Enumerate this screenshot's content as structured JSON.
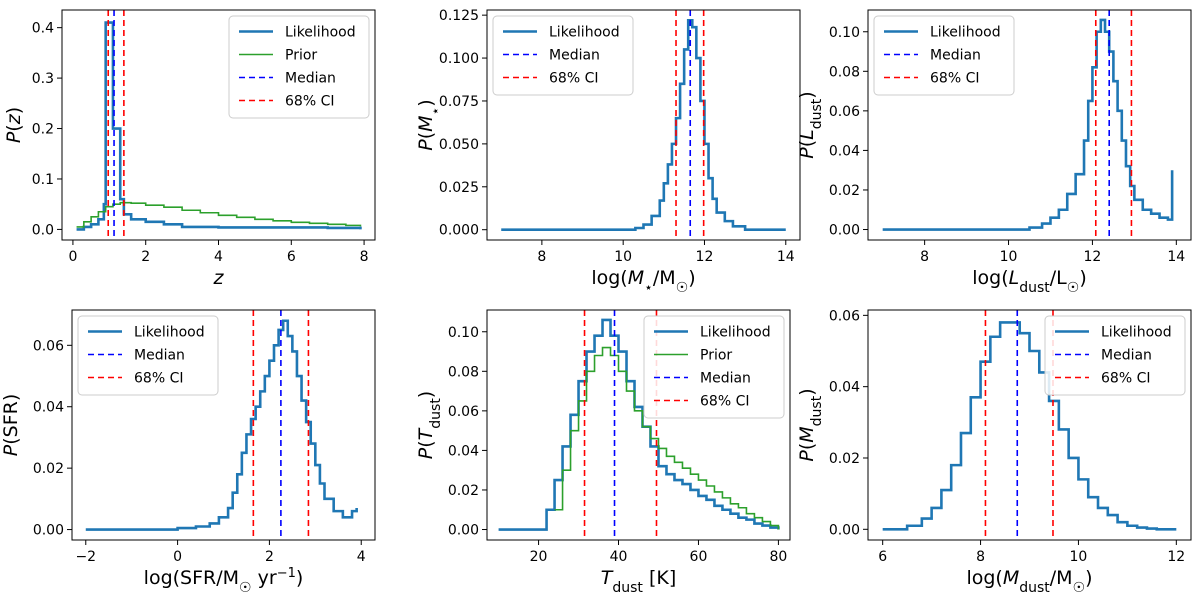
{
  "chart_data": [
    {
      "type": "step-histogram",
      "title": "",
      "xlabel": "z",
      "xlabel_kind": "z",
      "ylabel": "P(z)",
      "ylabel_kind": "Pz",
      "xlim": [
        -0.3,
        8.3
      ],
      "ylim": [
        -0.021,
        0.435
      ],
      "xticks": [
        0,
        2,
        4,
        6,
        8
      ],
      "xticklabels": [
        "0",
        "2",
        "4",
        "6",
        "8"
      ],
      "yticks": [
        0.0,
        0.1,
        0.2,
        0.3,
        0.4
      ],
      "yticklabels": [
        "0.0",
        "0.1",
        "0.2",
        "0.3",
        "0.4"
      ],
      "legend_position": "top-right",
      "legend": [
        "Likelihood",
        "Prior",
        "Median",
        "68% CI"
      ],
      "series": [
        {
          "name": "Likelihood",
          "color": "#1f77b4",
          "x": [
            0.1,
            0.3,
            0.5,
            0.7,
            0.85,
            0.9,
            1.0,
            1.1,
            1.2,
            1.3,
            1.4,
            1.6,
            2.0,
            2.5,
            3.0,
            4.0,
            5.0,
            6.0,
            7.0,
            7.9
          ],
          "y": [
            0.0,
            0.005,
            0.01,
            0.02,
            0.05,
            0.41,
            0.41,
            0.2,
            0.2,
            0.06,
            0.03,
            0.02,
            0.015,
            0.01,
            0.005,
            0.004,
            0.004,
            0.004,
            0.003,
            0.0
          ]
        },
        {
          "name": "Prior",
          "color": "#2ca02c",
          "x": [
            0.1,
            0.3,
            0.5,
            0.7,
            0.9,
            1.1,
            1.3,
            1.6,
            2.0,
            2.5,
            3.0,
            3.5,
            4.0,
            4.5,
            5.0,
            5.5,
            6.0,
            6.5,
            7.0,
            7.5,
            7.9
          ],
          "y": [
            0.005,
            0.015,
            0.025,
            0.035,
            0.045,
            0.05,
            0.053,
            0.052,
            0.048,
            0.044,
            0.038,
            0.033,
            0.028,
            0.024,
            0.02,
            0.017,
            0.014,
            0.012,
            0.01,
            0.008,
            0.006
          ]
        }
      ],
      "median": 1.13,
      "ci68": [
        0.97,
        1.4
      ],
      "median_label": "Median",
      "ci_label": "68% CI",
      "median_color": "#0000ff",
      "ci_color": "#ff0000"
    },
    {
      "type": "step-histogram",
      "title": "",
      "xlabel": "log(M⋆/M☉)",
      "xlabel_kind": "mstar",
      "ylabel": "P(M⋆)",
      "ylabel_kind": "Pmstar",
      "xlim": [
        6.65,
        14.35
      ],
      "ylim": [
        -0.006,
        0.128
      ],
      "xticks": [
        8,
        10,
        12,
        14
      ],
      "xticklabels": [
        "8",
        "10",
        "12",
        "14"
      ],
      "yticks": [
        0.0,
        0.025,
        0.05,
        0.075,
        0.1,
        0.125
      ],
      "yticklabels": [
        "0.000",
        "0.025",
        "0.050",
        "0.075",
        "0.100",
        "0.125"
      ],
      "legend_position": "top-left",
      "legend": [
        "Likelihood",
        "Median",
        "68% CI"
      ],
      "series": [
        {
          "name": "Likelihood",
          "color": "#1f77b4",
          "x": [
            7.0,
            10.3,
            10.5,
            10.7,
            10.9,
            11.0,
            11.1,
            11.2,
            11.3,
            11.4,
            11.5,
            11.6,
            11.7,
            11.8,
            11.9,
            12.0,
            12.1,
            12.2,
            12.3,
            12.5,
            12.7,
            13.0,
            14.0
          ],
          "y": [
            0.0,
            0.001,
            0.003,
            0.008,
            0.017,
            0.027,
            0.038,
            0.05,
            0.065,
            0.085,
            0.105,
            0.122,
            0.118,
            0.1,
            0.075,
            0.05,
            0.03,
            0.018,
            0.01,
            0.005,
            0.002,
            0.0,
            0.0
          ]
        }
      ],
      "median": 11.65,
      "ci68": [
        11.3,
        11.98
      ],
      "median_label": "Median",
      "ci_label": "68% CI",
      "median_color": "#0000ff",
      "ci_color": "#ff0000"
    },
    {
      "type": "step-histogram",
      "title": "",
      "xlabel": "log(Ldust/L☉)",
      "xlabel_kind": "ldust",
      "ylabel": "P(Ldust)",
      "ylabel_kind": "Pldust",
      "xlim": [
        6.65,
        14.35
      ],
      "ylim": [
        -0.0053,
        0.111
      ],
      "xticks": [
        8,
        10,
        12,
        14
      ],
      "xticklabels": [
        "8",
        "10",
        "12",
        "14"
      ],
      "yticks": [
        0.0,
        0.02,
        0.04,
        0.06,
        0.08,
        0.1
      ],
      "yticklabels": [
        "0.00",
        "0.02",
        "0.04",
        "0.06",
        "0.08",
        "0.10"
      ],
      "legend_position": "top-left",
      "legend": [
        "Likelihood",
        "Median",
        "68% CI"
      ],
      "series": [
        {
          "name": "Likelihood",
          "color": "#1f77b4",
          "x": [
            7.0,
            10.5,
            10.8,
            11.0,
            11.2,
            11.4,
            11.6,
            11.8,
            11.9,
            12.0,
            12.1,
            12.2,
            12.3,
            12.4,
            12.5,
            12.6,
            12.7,
            12.8,
            12.9,
            13.0,
            13.2,
            13.4,
            13.6,
            13.8,
            13.9
          ],
          "y": [
            0.0,
            0.001,
            0.003,
            0.006,
            0.01,
            0.018,
            0.028,
            0.045,
            0.065,
            0.082,
            0.1,
            0.106,
            0.1,
            0.09,
            0.075,
            0.06,
            0.045,
            0.032,
            0.022,
            0.015,
            0.01,
            0.008,
            0.006,
            0.005,
            0.03
          ]
        }
      ],
      "median": 12.4,
      "ci68": [
        12.08,
        12.93
      ],
      "median_label": "Median",
      "ci_label": "68% CI",
      "median_color": "#0000ff",
      "ci_color": "#ff0000"
    },
    {
      "type": "step-histogram",
      "title": "",
      "xlabel": "log(SFR/M☉ yr⁻¹)",
      "xlabel_kind": "sfr",
      "ylabel": "P(SFR)",
      "ylabel_kind": "Psfr",
      "xlim": [
        -2.3,
        4.3
      ],
      "ylim": [
        -0.0034,
        0.0715
      ],
      "xticks": [
        -2,
        0,
        2,
        4
      ],
      "xticklabels": [
        "−2",
        "0",
        "2",
        "4"
      ],
      "yticks": [
        0.0,
        0.02,
        0.04,
        0.06
      ],
      "yticklabels": [
        "0.00",
        "0.02",
        "0.04",
        "0.06"
      ],
      "legend_position": "top-left",
      "legend": [
        "Likelihood",
        "Median",
        "68% CI"
      ],
      "series": [
        {
          "name": "Likelihood",
          "color": "#1f77b4",
          "x": [
            -2.0,
            0.0,
            0.4,
            0.7,
            0.9,
            1.1,
            1.2,
            1.3,
            1.4,
            1.5,
            1.6,
            1.7,
            1.8,
            1.9,
            2.0,
            2.1,
            2.2,
            2.3,
            2.4,
            2.5,
            2.6,
            2.7,
            2.8,
            2.9,
            3.0,
            3.1,
            3.2,
            3.4,
            3.6,
            3.8,
            3.9
          ],
          "y": [
            0.0,
            0.0005,
            0.001,
            0.002,
            0.004,
            0.007,
            0.012,
            0.018,
            0.025,
            0.031,
            0.036,
            0.04,
            0.045,
            0.05,
            0.055,
            0.06,
            0.065,
            0.068,
            0.063,
            0.058,
            0.05,
            0.042,
            0.035,
            0.028,
            0.021,
            0.015,
            0.01,
            0.006,
            0.004,
            0.006,
            0.007
          ]
        }
      ],
      "median": 2.25,
      "ci68": [
        1.65,
        2.85
      ],
      "median_label": "Median",
      "ci_label": "68% CI",
      "median_color": "#0000ff",
      "ci_color": "#ff0000"
    },
    {
      "type": "step-histogram",
      "title": "",
      "xlabel": "Tdust [K]",
      "xlabel_kind": "tdust",
      "ylabel": "P(Tdust)",
      "ylabel_kind": "Ptdust",
      "xlim": [
        7.1,
        82.9
      ],
      "ylim": [
        -0.0053,
        0.111
      ],
      "xticks": [
        20,
        40,
        60,
        80
      ],
      "xticklabels": [
        "20",
        "40",
        "60",
        "80"
      ],
      "yticks": [
        0.0,
        0.02,
        0.04,
        0.06,
        0.08,
        0.1
      ],
      "yticklabels": [
        "0.00",
        "0.02",
        "0.04",
        "0.06",
        "0.08",
        "0.10"
      ],
      "legend_position": "top-right",
      "legend": [
        "Likelihood",
        "Prior",
        "Median",
        "68% CI"
      ],
      "series": [
        {
          "name": "Likelihood",
          "color": "#1f77b4",
          "x": [
            10,
            20,
            22,
            24,
            26,
            28,
            30,
            32,
            34,
            36,
            38,
            40,
            42,
            44,
            46,
            48,
            50,
            52,
            54,
            56,
            58,
            60,
            62,
            64,
            66,
            68,
            70,
            72,
            74,
            76,
            78,
            80
          ],
          "y": [
            0.0,
            0.0,
            0.01,
            0.025,
            0.042,
            0.058,
            0.075,
            0.09,
            0.098,
            0.106,
            0.098,
            0.09,
            0.075,
            0.062,
            0.052,
            0.042,
            0.032,
            0.028,
            0.025,
            0.023,
            0.02,
            0.017,
            0.015,
            0.012,
            0.01,
            0.008,
            0.006,
            0.005,
            0.003,
            0.002,
            0.001,
            0.0
          ]
        },
        {
          "name": "Prior",
          "color": "#2ca02c",
          "x": [
            24,
            26,
            28,
            30,
            32,
            34,
            36,
            38,
            40,
            42,
            44,
            46,
            48,
            50,
            52,
            54,
            56,
            58,
            60,
            62,
            64,
            66,
            68,
            70,
            72,
            74,
            76,
            78,
            80
          ],
          "y": [
            0.01,
            0.03,
            0.05,
            0.065,
            0.08,
            0.088,
            0.092,
            0.088,
            0.08,
            0.07,
            0.06,
            0.052,
            0.046,
            0.041,
            0.037,
            0.034,
            0.031,
            0.028,
            0.025,
            0.022,
            0.019,
            0.016,
            0.013,
            0.011,
            0.008,
            0.006,
            0.004,
            0.002,
            0.0
          ]
        }
      ],
      "median": 39,
      "ci68": [
        31.5,
        49.5
      ],
      "median_label": "Median",
      "ci_label": "68% CI",
      "median_color": "#0000ff",
      "ci_color": "#ff0000"
    },
    {
      "type": "step-histogram",
      "title": "",
      "xlabel": "log(Mdust/M☉)",
      "xlabel_kind": "mdust",
      "ylabel": "P(Mdust)",
      "ylabel_kind": "Pmdust",
      "xlim": [
        5.7,
        12.3
      ],
      "ylim": [
        -0.003,
        0.0615
      ],
      "xticks": [
        6,
        8,
        10,
        12
      ],
      "xticklabels": [
        "6",
        "8",
        "10",
        "12"
      ],
      "yticks": [
        0.0,
        0.02,
        0.04,
        0.06
      ],
      "yticklabels": [
        "0.00",
        "0.02",
        "0.04",
        "0.06"
      ],
      "legend_position": "top-right",
      "legend": [
        "Likelihood",
        "Median",
        "68% CI"
      ],
      "series": [
        {
          "name": "Likelihood",
          "color": "#1f77b4",
          "x": [
            6.0,
            6.5,
            6.8,
            7.0,
            7.2,
            7.4,
            7.6,
            7.8,
            8.0,
            8.2,
            8.4,
            8.6,
            8.8,
            9.0,
            9.2,
            9.4,
            9.6,
            9.8,
            10.0,
            10.2,
            10.4,
            10.6,
            10.8,
            11.0,
            11.2,
            11.4,
            11.6,
            12.0
          ],
          "y": [
            0.0,
            0.001,
            0.003,
            0.006,
            0.011,
            0.018,
            0.027,
            0.037,
            0.047,
            0.054,
            0.058,
            0.058,
            0.055,
            0.05,
            0.044,
            0.036,
            0.028,
            0.02,
            0.014,
            0.009,
            0.006,
            0.004,
            0.002,
            0.001,
            0.0005,
            0.0002,
            0.0,
            0.0
          ]
        }
      ],
      "median": 8.75,
      "ci68": [
        8.1,
        9.48
      ],
      "median_label": "Median",
      "ci_label": "68% CI",
      "median_color": "#0000ff",
      "ci_color": "#ff0000"
    }
  ]
}
